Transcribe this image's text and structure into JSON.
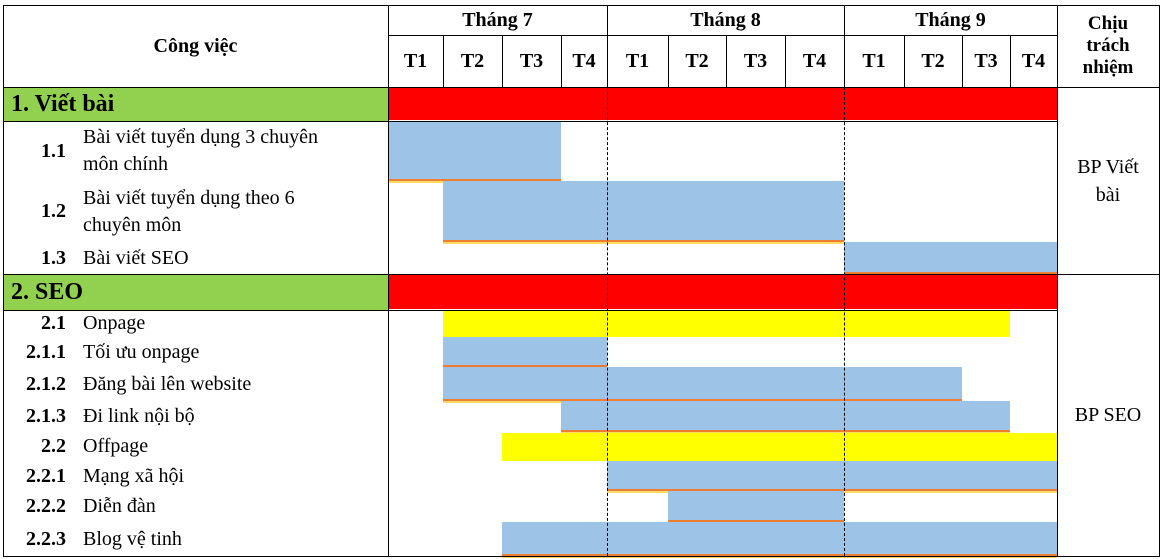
{
  "header": {
    "task_col": "Công việc",
    "months": [
      "Tháng 7",
      "Tháng 8",
      "Tháng 9"
    ],
    "weeks": [
      "T1",
      "T2",
      "T3",
      "T4",
      "T1",
      "T2",
      "T3",
      "T4",
      "T1",
      "T2",
      "T3",
      "T4"
    ],
    "responsible": [
      "Chịu",
      "trách",
      "nhiệm"
    ]
  },
  "sections": [
    {
      "title": "1. Viết bài",
      "owner": [
        "BP Viết",
        "bài"
      ],
      "tasks": [
        {
          "num": "1.1",
          "label": [
            "Bài viết tuyển dụng 3 chuyên",
            "môn chính"
          ],
          "start_week": 1,
          "end_week": 3
        },
        {
          "num": "1.2",
          "label": [
            "Bài viết tuyển dụng theo 6",
            "chuyên môn"
          ],
          "start_week": 2,
          "end_week": 8
        },
        {
          "num": "1.3",
          "label": [
            "Bài viết SEO"
          ],
          "start_week": 9,
          "end_week": 12
        }
      ]
    },
    {
      "title": "2. SEO",
      "owner": [
        "BP SEO"
      ],
      "tasks": [
        {
          "num": "2.1",
          "label": [
            "Onpage"
          ],
          "start_week": 2,
          "end_week": 11
        },
        {
          "num": "2.1.1",
          "label": [
            "Tối ưu onpage"
          ],
          "start_week": 2,
          "end_week": 4
        },
        {
          "num": "2.1.2",
          "label": [
            "Đăng bài lên website"
          ],
          "start_week": 2,
          "end_week": 10
        },
        {
          "num": "2.1.3",
          "label": [
            "Đi link nội bộ"
          ],
          "start_week": 4,
          "end_week": 11
        },
        {
          "num": "2.2",
          "label": [
            "Offpage"
          ],
          "start_week": 3,
          "end_week": 12
        },
        {
          "num": "2.2.1",
          "label": [
            "Mạng xã hội"
          ],
          "start_week": 5,
          "end_week": 12
        },
        {
          "num": "2.2.2",
          "label": [
            "Diễn đàn"
          ],
          "start_week": 6,
          "end_week": 8
        },
        {
          "num": "2.2.3",
          "label": [
            "Blog vệ tinh"
          ],
          "start_week": 3,
          "end_week": 12
        }
      ]
    }
  ],
  "colors": {
    "section_fill": "#92d050",
    "summary_bar": "#ff0000",
    "task_bar": "#9dc3e6",
    "group_bar": "#ffff00",
    "underline": "#ed7d31"
  }
}
